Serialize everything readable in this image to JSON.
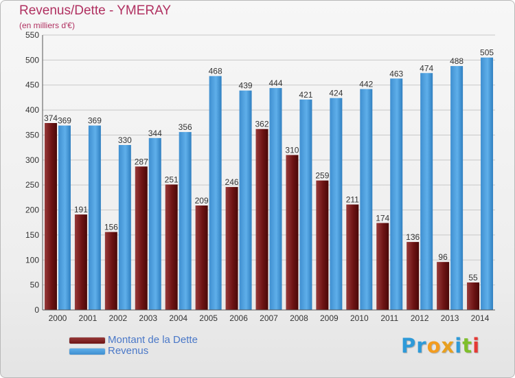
{
  "colors": {
    "debt": "#6e1414",
    "debt_light": "#973a3a",
    "revenue": "#3f8fd0",
    "revenue_light": "#5fafea",
    "title": "#b03060",
    "grid": "#c8c8c8"
  },
  "chart_data": {
    "type": "bar",
    "title": "Revenus/Dette - YMERAY",
    "subtitle": "(en milliers d'€)",
    "categories": [
      "2000",
      "2001",
      "2002",
      "2003",
      "2004",
      "2005",
      "2006",
      "2007",
      "2008",
      "2009",
      "2010",
      "2011",
      "2012",
      "2013",
      "2014"
    ],
    "series": [
      {
        "name": "Montant de la Dette",
        "values": [
          374,
          191,
          156,
          287,
          251,
          209,
          246,
          362,
          310,
          259,
          211,
          174,
          136,
          96,
          55
        ]
      },
      {
        "name": "Revenus",
        "values": [
          369,
          369,
          330,
          344,
          356,
          468,
          439,
          444,
          421,
          424,
          442,
          463,
          474,
          488,
          505
        ]
      }
    ],
    "ylim": [
      0,
      550
    ],
    "yticks": [
      0,
      50,
      100,
      150,
      200,
      250,
      300,
      350,
      400,
      450,
      500,
      550
    ],
    "grid": true,
    "legend_position": "bottom-left"
  },
  "logo": {
    "name": "proxiti-logo",
    "letters": [
      {
        "ch": "P",
        "color": "#2e9ad8"
      },
      {
        "ch": "r",
        "color": "#2e9ad8"
      },
      {
        "ch": "o",
        "color": "#f39c1f"
      },
      {
        "ch": "x",
        "color": "#e8a020"
      },
      {
        "ch": "i",
        "color": "#2e9ad8"
      },
      {
        "ch": "t",
        "color": "#7fbf2b"
      },
      {
        "ch": "i",
        "color": "#e53935"
      }
    ]
  }
}
